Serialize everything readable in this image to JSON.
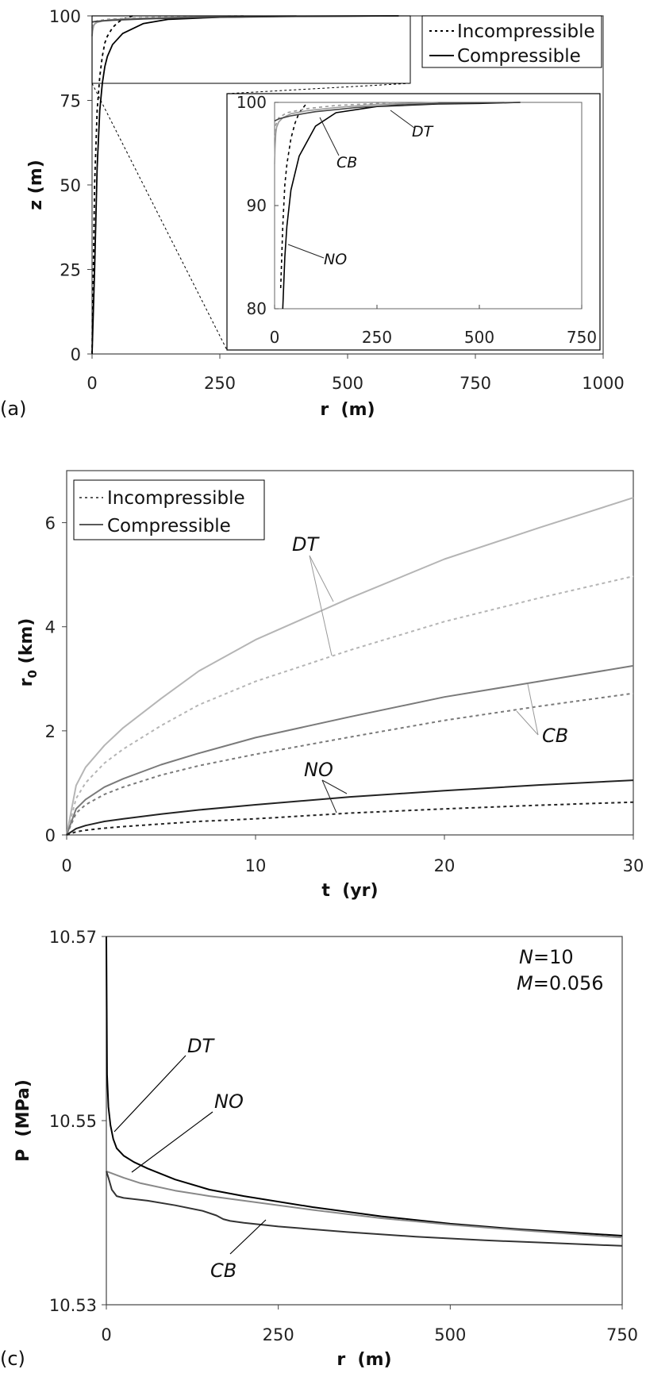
{
  "chart_data": [
    {
      "id": "a",
      "type": "line",
      "panel_label": "(a)",
      "xlabel": "r  (m)",
      "ylabel": "z (m)",
      "xlim": [
        0,
        1000
      ],
      "ylim": [
        0,
        100
      ],
      "xticks": [
        "0",
        "250",
        "500",
        "750",
        "1000"
      ],
      "yticks": [
        "0",
        "25",
        "50",
        "75",
        "100"
      ],
      "legend": {
        "placement": "top-right",
        "entries": [
          "Incompressible",
          "Compressible"
        ]
      },
      "series": [
        {
          "style": "dashed",
          "color": "#000000",
          "x": [
            0,
            5,
            10,
            15,
            20,
            25,
            30,
            40,
            50,
            60,
            80
          ],
          "y": [
            0,
            50,
            72,
            82,
            88,
            92,
            94,
            96.5,
            98,
            99,
            100
          ]
        },
        {
          "style": "solid",
          "color": "#000000",
          "x": [
            0,
            5,
            10,
            15,
            20,
            25,
            30,
            40,
            60,
            100,
            150,
            250,
            400,
            500,
            600
          ],
          "y": [
            0,
            25,
            55,
            72,
            80,
            85,
            88,
            91.5,
            94.8,
            97.7,
            99,
            99.6,
            99.85,
            99.9,
            100
          ]
        },
        {
          "style": "solid",
          "color": "#999999",
          "x": [
            0,
            1,
            3,
            5,
            10,
            20,
            40,
            80,
            150,
            250,
            400
          ],
          "y": [
            94,
            95.5,
            97,
            97.6,
            98.1,
            98.5,
            98.9,
            99.2,
            99.5,
            99.8,
            100
          ]
        },
        {
          "style": "dashed",
          "color": "#999999",
          "x": [
            0,
            3,
            10,
            30,
            80,
            150,
            300
          ],
          "y": [
            96.5,
            97.8,
            98.5,
            99,
            99.4,
            99.7,
            100
          ]
        },
        {
          "style": "solid",
          "color": "#444444",
          "x": [
            0,
            10,
            40,
            100,
            200,
            300,
            400,
            500,
            600
          ],
          "y": [
            98.2,
            98.4,
            98.7,
            99.1,
            99.5,
            99.75,
            99.9,
            99.95,
            100
          ]
        }
      ],
      "inset": {
        "xlim": [
          0,
          750
        ],
        "ylim": [
          80,
          100
        ],
        "xticks": [
          "0",
          "250",
          "500",
          "750"
        ],
        "yticks": [
          "80",
          "90",
          "100"
        ],
        "annotations": [
          "DT",
          "CB",
          "NO"
        ]
      }
    },
    {
      "id": "b",
      "type": "line",
      "xlabel": "t  (yr)",
      "ylabel_main": "r",
      "ylabel_sub": "0",
      "ylabel_rest": " (km)",
      "xlim": [
        0,
        30
      ],
      "ylim": [
        0,
        7
      ],
      "xticks": [
        "0",
        "10",
        "20",
        "30"
      ],
      "yticks": [
        "0",
        "2",
        "4",
        "6"
      ],
      "legend": {
        "placement": "top-left",
        "entries": [
          "Incompressible",
          "Compressible"
        ]
      },
      "annotations": [
        "DT",
        "CB",
        "NO"
      ],
      "series": [
        {
          "label": "DT",
          "style": "solid",
          "color": "#b5b5b5",
          "x": [
            0,
            0.5,
            1,
            2,
            3,
            5,
            7,
            10,
            15,
            20,
            25,
            30
          ],
          "y": [
            0,
            0.95,
            1.3,
            1.72,
            2.06,
            2.62,
            3.15,
            3.75,
            4.55,
            5.3,
            5.9,
            6.48
          ]
        },
        {
          "label": "DT",
          "style": "dashed",
          "color": "#b5b5b5",
          "x": [
            0,
            0.5,
            1,
            2,
            3,
            5,
            7,
            10,
            15,
            20,
            25,
            30
          ],
          "y": [
            0,
            0.7,
            1.0,
            1.38,
            1.65,
            2.1,
            2.5,
            2.95,
            3.55,
            4.1,
            4.55,
            4.97
          ]
        },
        {
          "label": "CB",
          "style": "solid",
          "color": "#7a7a7a",
          "x": [
            0,
            0.5,
            1,
            2,
            3,
            5,
            7,
            10,
            15,
            20,
            25,
            30
          ],
          "y": [
            0,
            0.5,
            0.68,
            0.92,
            1.08,
            1.35,
            1.57,
            1.87,
            2.27,
            2.65,
            2.95,
            3.25
          ]
        },
        {
          "label": "CB",
          "style": "dashed",
          "color": "#7a7a7a",
          "x": [
            0,
            0.5,
            1,
            2,
            3,
            5,
            7,
            10,
            15,
            20,
            25,
            30
          ],
          "y": [
            0,
            0.42,
            0.58,
            0.78,
            0.92,
            1.15,
            1.33,
            1.55,
            1.88,
            2.2,
            2.47,
            2.72
          ]
        },
        {
          "label": "NO",
          "style": "solid",
          "color": "#222222",
          "x": [
            0,
            0.5,
            1,
            2,
            3,
            5,
            7,
            10,
            15,
            20,
            25,
            30
          ],
          "y": [
            0,
            0.12,
            0.18,
            0.26,
            0.31,
            0.4,
            0.48,
            0.58,
            0.73,
            0.85,
            0.96,
            1.05
          ]
        },
        {
          "label": "NO",
          "style": "dashed",
          "color": "#222222",
          "x": [
            0,
            0.5,
            1,
            2,
            3,
            5,
            7,
            10,
            15,
            20,
            25,
            30
          ],
          "y": [
            0,
            0.06,
            0.09,
            0.13,
            0.16,
            0.21,
            0.26,
            0.31,
            0.42,
            0.5,
            0.57,
            0.63
          ]
        }
      ]
    },
    {
      "id": "c",
      "type": "line",
      "panel_label": "(c)",
      "xlabel": "r  (m)",
      "ylabel": "P  (MPa)",
      "xlim": [
        0,
        750
      ],
      "ylim": [
        10.53,
        10.57
      ],
      "xticks": [
        "0",
        "250",
        "500",
        "750"
      ],
      "yticks": [
        "10.53",
        "10.55",
        "10.57"
      ],
      "params": [
        {
          "symbol": "N",
          "value": "=10"
        },
        {
          "symbol": "M",
          "value": "=0.056"
        }
      ],
      "annotations": [
        "DT",
        "NO",
        "CB"
      ],
      "series": [
        {
          "label": "DT",
          "style": "solid",
          "color": "#000000",
          "x": [
            0,
            1,
            3,
            6,
            10,
            15,
            25,
            40,
            60,
            100,
            150,
            200,
            300,
            400,
            500,
            600,
            750
          ],
          "y": [
            10.57,
            10.555,
            10.5515,
            10.5495,
            10.548,
            10.547,
            10.5462,
            10.5455,
            10.5448,
            10.5436,
            10.5425,
            10.5418,
            10.5406,
            10.5396,
            10.5388,
            10.5382,
            10.5375
          ]
        },
        {
          "label": "NO",
          "style": "solid",
          "color": "#888888",
          "x": [
            0,
            25,
            50,
            100,
            150,
            200,
            300,
            400,
            500,
            600,
            750
          ],
          "y": [
            10.5445,
            10.5438,
            10.5432,
            10.5424,
            10.5418,
            10.5413,
            10.5403,
            10.5394,
            10.5387,
            10.5381,
            10.5373
          ]
        },
        {
          "label": "CB",
          "style": "solid",
          "color": "#333333",
          "x": [
            0,
            3,
            8,
            15,
            25,
            60,
            100,
            140,
            160,
            170,
            180,
            200,
            250,
            350,
            450,
            550,
            650,
            750
          ],
          "y": [
            10.5445,
            10.5438,
            10.5425,
            10.5418,
            10.5416,
            10.5413,
            10.5408,
            10.5402,
            10.5397,
            10.5393,
            10.5391,
            10.5389,
            10.5385,
            10.5379,
            10.5374,
            10.537,
            10.5367,
            10.5364
          ]
        }
      ]
    }
  ]
}
